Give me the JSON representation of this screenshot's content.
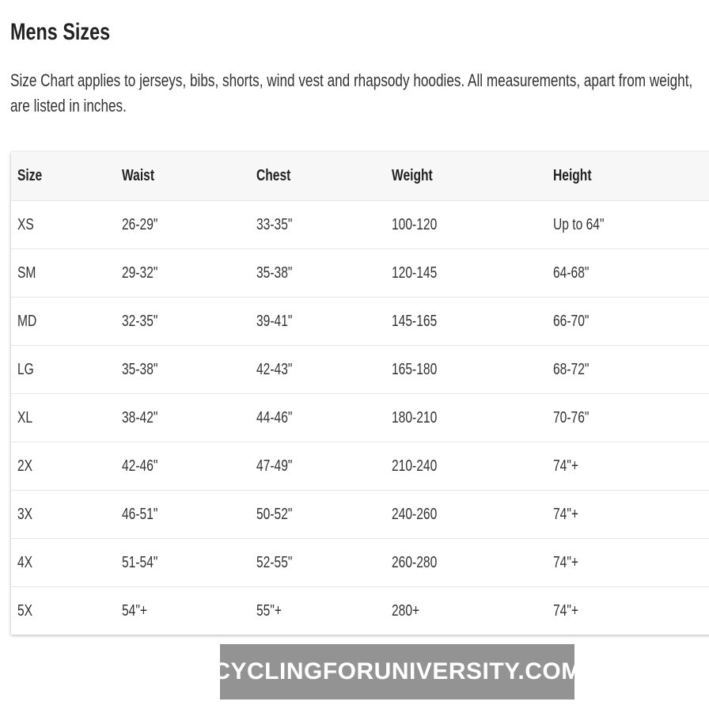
{
  "title": "Mens Sizes",
  "description": "Size Chart applies to jerseys, bibs, shorts, wind vest and rhapsody hoodies. All measurements, apart from weight, are listed in inches.",
  "table": {
    "headers": [
      "Size",
      "Waist",
      "Chest",
      "Weight",
      "Height"
    ],
    "rows": [
      [
        "XS",
        "26-29\"",
        "33-35\"",
        "100-120",
        "Up to 64\""
      ],
      [
        "SM",
        "29-32\"",
        "35-38\"",
        "120-145",
        "64-68\""
      ],
      [
        "MD",
        "32-35\"",
        "39-41\"",
        "145-165",
        "66-70\""
      ],
      [
        "LG",
        "35-38\"",
        "42-43\"",
        "165-180",
        "68-72\""
      ],
      [
        "XL",
        "38-42\"",
        "44-46\"",
        "180-210",
        "70-76\""
      ],
      [
        "2X",
        "42-46\"",
        "47-49\"",
        "210-240",
        "74\"+"
      ],
      [
        "3X",
        "46-51\"",
        "50-52\"",
        "240-260",
        "74\"+"
      ],
      [
        "4X",
        "51-54\"",
        "52-55\"",
        "260-280",
        "74\"+"
      ],
      [
        "5X",
        "54\"+",
        "55\"+",
        "280+",
        "74\"+"
      ]
    ]
  },
  "watermark": "CYCLINGFORUNIVERSITY.COM"
}
